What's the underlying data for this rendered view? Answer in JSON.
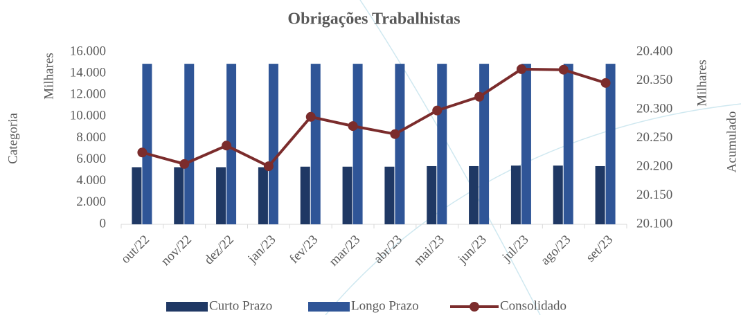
{
  "chart_data": {
    "type": "bar",
    "title": "Obrigações Trabalhistas",
    "categories": [
      "out/22",
      "nov/22",
      "dez/22",
      "jan/23",
      "fev/23",
      "mar/23",
      "abr/23",
      "mai/23",
      "jun/23",
      "jul/23",
      "ago/23",
      "set/23"
    ],
    "series": [
      {
        "name": "Curto Prazo",
        "color": "#1f3864",
        "type": "bar",
        "values": [
          5300,
          5300,
          5300,
          5300,
          5350,
          5350,
          5350,
          5400,
          5400,
          5450,
          5450,
          5400
        ]
      },
      {
        "name": "Longo Prazo",
        "color": "#2f5597",
        "type": "bar",
        "values": [
          14900,
          14900,
          14900,
          14900,
          14900,
          14900,
          14900,
          14900,
          14900,
          14900,
          14900,
          14900
        ]
      },
      {
        "name": "Consolidado",
        "color": "#7b2c2c",
        "type": "line",
        "axis": "y2",
        "values": [
          20225,
          20205,
          20237,
          20201,
          20287,
          20271,
          20257,
          20298,
          20322,
          20370,
          20369,
          20346
        ]
      }
    ],
    "ylabel": "Milhares",
    "xlabel": "Categoria",
    "y2label": "Milhares",
    "y2title": "Acumulado",
    "ylim": [
      0,
      16000
    ],
    "yticks": [
      0,
      {
        "value": 2000,
        "label": "2.000"
      },
      {
        "value": 4000,
        "label": "4.000"
      },
      {
        "value": 6000,
        "label": "6.000"
      },
      {
        "value": 8000,
        "label": "8.000"
      },
      {
        "value": 10000,
        "label": "10.000"
      },
      {
        "value": 12000,
        "label": "12.000"
      },
      {
        "value": 14000,
        "label": "14.000"
      },
      {
        "value": 16000,
        "label": "16.000"
      }
    ],
    "y2lim": [
      20100,
      20400
    ],
    "y2ticks": [
      {
        "value": 20100,
        "label": "20.100"
      },
      {
        "value": 20150,
        "label": "20.150"
      },
      {
        "value": 20200,
        "label": "20.200"
      },
      {
        "value": 20250,
        "label": "20.250"
      },
      {
        "value": 20300,
        "label": "20.300"
      },
      {
        "value": 20350,
        "label": "20.350"
      },
      {
        "value": 20400,
        "label": "20.400"
      }
    ],
    "legend": "bottom"
  }
}
